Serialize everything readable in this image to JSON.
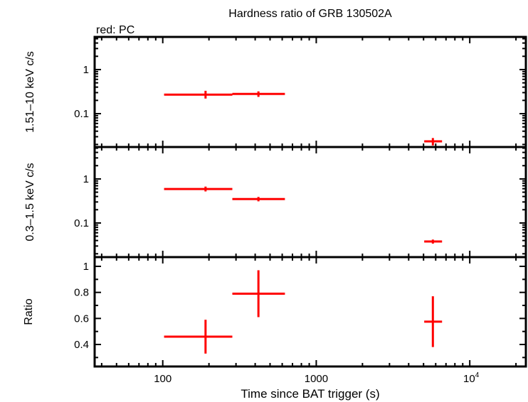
{
  "chart_data": {
    "type": "scatter",
    "title": "Hardness ratio of GRB 130502A",
    "legend_note": "red: PC",
    "xlabel": "Time since BAT trigger (s)",
    "xscale": "log",
    "xlim": [
      36,
      23200
    ],
    "xticks": [
      {
        "value": 100,
        "label": "100"
      },
      {
        "value": 1000,
        "label": "1000"
      },
      {
        "value": 10000,
        "label": "10^4"
      }
    ],
    "series_color": "#ff0000",
    "panels": [
      {
        "name": "hard",
        "ylabel": "1.51–10 keV c/s",
        "yscale": "log",
        "ylim": [
          0.0175,
          5.5
        ],
        "yticks": [
          {
            "value": 1,
            "label": "1"
          },
          {
            "value": 0.1,
            "label": "0.1"
          }
        ],
        "points": [
          {
            "x": 190,
            "xlo": 102,
            "xhi": 284,
            "y": 0.27,
            "ylo": 0.22,
            "yhi": 0.33
          },
          {
            "x": 420,
            "xlo": 284,
            "xhi": 625,
            "y": 0.28,
            "ylo": 0.24,
            "yhi": 0.32
          },
          {
            "x": 5750,
            "xlo": 5050,
            "xhi": 6600,
            "y": 0.0235,
            "ylo": 0.019,
            "yhi": 0.028
          }
        ]
      },
      {
        "name": "soft",
        "ylabel": "0.3–1.5 keV c/s",
        "yscale": "log",
        "ylim": [
          0.0168,
          5.3
        ],
        "yticks": [
          {
            "value": 1,
            "label": "1"
          },
          {
            "value": 0.1,
            "label": "0.1"
          }
        ],
        "points": [
          {
            "x": 190,
            "xlo": 102,
            "xhi": 284,
            "y": 0.59,
            "ylo": 0.52,
            "yhi": 0.67
          },
          {
            "x": 420,
            "xlo": 284,
            "xhi": 625,
            "y": 0.35,
            "ylo": 0.31,
            "yhi": 0.39
          },
          {
            "x": 5750,
            "xlo": 5050,
            "xhi": 6600,
            "y": 0.038,
            "ylo": 0.034,
            "yhi": 0.042
          }
        ]
      },
      {
        "name": "ratio",
        "ylabel": "Ratio",
        "yscale": "linear",
        "ylim": [
          0.231,
          1.071
        ],
        "yticks": [
          {
            "value": 0.4,
            "label": "0.4"
          },
          {
            "value": 0.6,
            "label": "0.6"
          },
          {
            "value": 0.8,
            "label": "0.8"
          },
          {
            "value": 1,
            "label": "1"
          }
        ],
        "points": [
          {
            "x": 190,
            "xlo": 102,
            "xhi": 284,
            "y": 0.46,
            "ylo": 0.33,
            "yhi": 0.59
          },
          {
            "x": 420,
            "xlo": 284,
            "xhi": 625,
            "y": 0.79,
            "ylo": 0.61,
            "yhi": 0.97
          },
          {
            "x": 5750,
            "xlo": 5050,
            "xhi": 6600,
            "y": 0.575,
            "ylo": 0.38,
            "yhi": 0.77
          }
        ]
      }
    ]
  }
}
